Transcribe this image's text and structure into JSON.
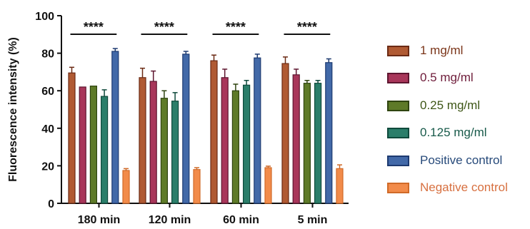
{
  "chart_data": {
    "type": "bar",
    "categories": [
      "180 min",
      "120 min",
      "60 min",
      "5 min"
    ],
    "ylabel": "Fluorescence intensity (%)",
    "xlabel": "",
    "ylim": [
      0,
      100
    ],
    "yticks": [
      0,
      20,
      40,
      60,
      80,
      100
    ],
    "grid": false,
    "legend_position": "right",
    "significance_label": "****",
    "series": [
      {
        "name": "1 mg/ml",
        "values": [
          69.5,
          67,
          76,
          74.5
        ],
        "errors": [
          3,
          5,
          3,
          3.5
        ],
        "fill": "#b05a33",
        "stroke": "#6b2a14",
        "text_color": "#7a3418"
      },
      {
        "name": "0.5 mg/ml",
        "values": [
          62,
          65,
          67,
          68.5
        ],
        "errors": [
          0,
          5.5,
          4.5,
          3
        ],
        "fill": "#a8365a",
        "stroke": "#5e1630",
        "text_color": "#6e1c3a"
      },
      {
        "name": "0.25 mg/ml",
        "values": [
          62.5,
          56,
          60,
          64
        ],
        "errors": [
          0,
          4,
          3.5,
          1.5
        ],
        "fill": "#5e7a28",
        "stroke": "#2f4410",
        "text_color": "#3e5616"
      },
      {
        "name": "0.125 mg/ml",
        "values": [
          57,
          54.5,
          63,
          64
        ],
        "errors": [
          3.5,
          4.5,
          2.5,
          1.5
        ],
        "fill": "#2b7e6a",
        "stroke": "#0f4a3c",
        "text_color": "#185a4a"
      },
      {
        "name": "Positive control",
        "values": [
          81,
          79.5,
          77.5,
          75
        ],
        "errors": [
          1.5,
          1.5,
          2,
          2
        ],
        "fill": "#4269a8",
        "stroke": "#1d3a70",
        "text_color": "#274a7a"
      },
      {
        "name": "Negative control",
        "values": [
          17.5,
          18,
          19,
          18.5
        ],
        "errors": [
          1,
          1,
          0.8,
          2
        ],
        "fill": "#f28b4a",
        "stroke": "#d06a28",
        "text_color": "#d77040"
      }
    ]
  }
}
